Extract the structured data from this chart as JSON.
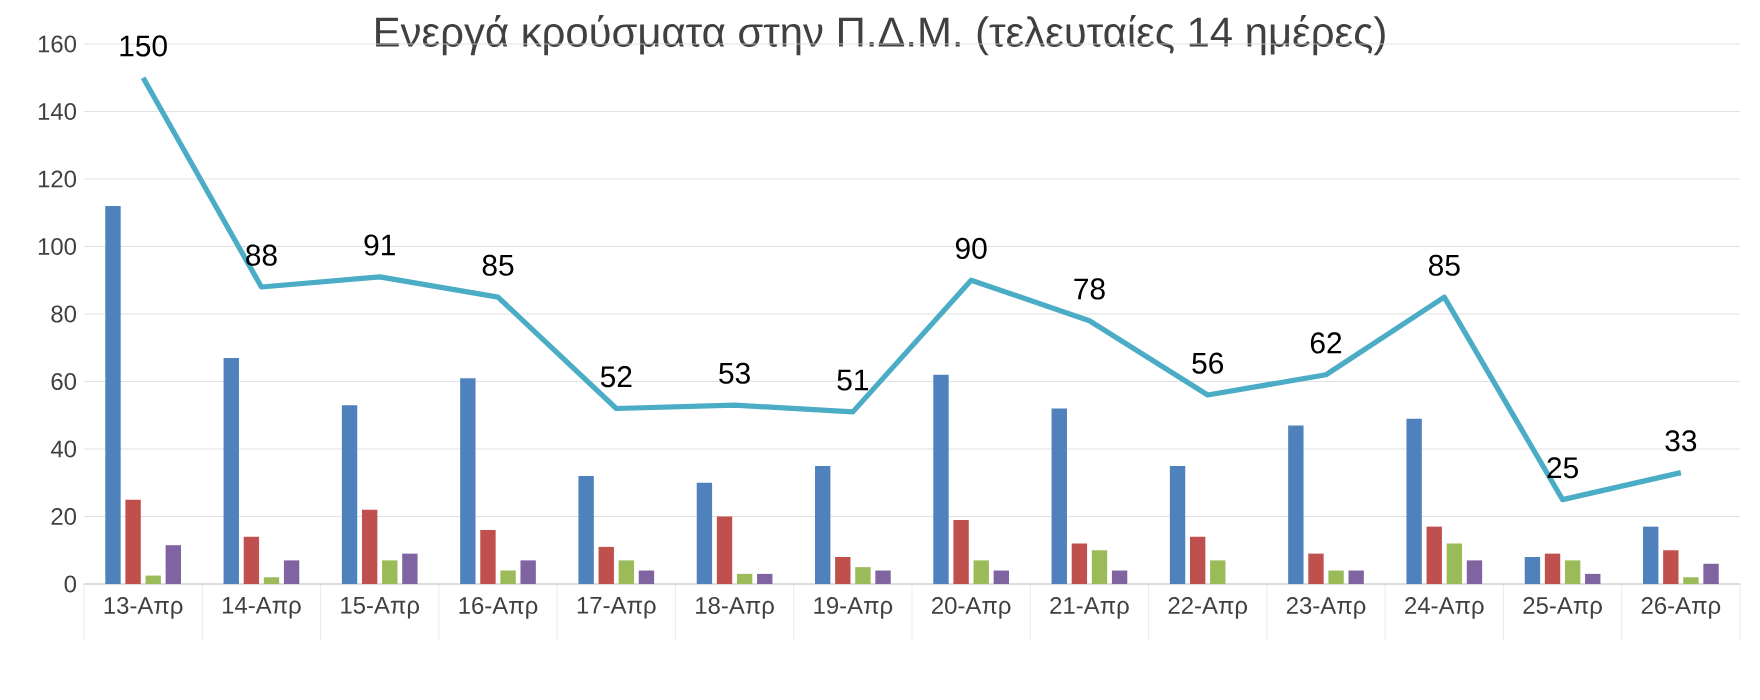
{
  "chart_data": {
    "type": "bar",
    "title": "Ενεργά κρούσματα στην Π.Δ.Μ. (τελευταίες 14 ημέρες)",
    "categories": [
      "13-Απρ",
      "14-Απρ",
      "15-Απρ",
      "16-Απρ",
      "17-Απρ",
      "18-Απρ",
      "19-Απρ",
      "20-Απρ",
      "21-Απρ",
      "22-Απρ",
      "23-Απρ",
      "24-Απρ",
      "25-Απρ",
      "26-Απρ"
    ],
    "series": [
      {
        "color": "#4f81bd",
        "values": [
          112,
          67,
          53,
          61,
          32,
          30,
          35,
          62,
          52,
          35,
          47,
          49,
          8,
          17
        ]
      },
      {
        "color": "#c0504d",
        "values": [
          25,
          14,
          22,
          16,
          11,
          20,
          8,
          19,
          12,
          14,
          9,
          17,
          9,
          10
        ]
      },
      {
        "color": "#9bbb59",
        "values": [
          2.5,
          2,
          7,
          4,
          7,
          3,
          5,
          7,
          10,
          7,
          4,
          12,
          7,
          2
        ]
      },
      {
        "color": "#8064a2",
        "values": [
          11.5,
          7,
          9,
          7,
          4,
          3,
          4,
          4,
          4,
          0,
          4,
          7,
          3,
          6
        ]
      },
      {
        "type": "line",
        "color": "#4bacc6",
        "values": [
          150,
          88,
          91,
          85,
          52,
          53,
          51,
          90,
          78,
          56,
          62,
          85,
          25,
          33
        ],
        "value_labels": [
          "150",
          "88",
          "91",
          "85",
          "52",
          "53",
          "51",
          "90",
          "78",
          "56",
          "62",
          "85",
          "25",
          "33"
        ]
      }
    ],
    "ylim": [
      0,
      160
    ],
    "yticks": [
      0,
      20,
      40,
      60,
      80,
      100,
      120,
      140,
      160
    ],
    "grid": "y"
  }
}
